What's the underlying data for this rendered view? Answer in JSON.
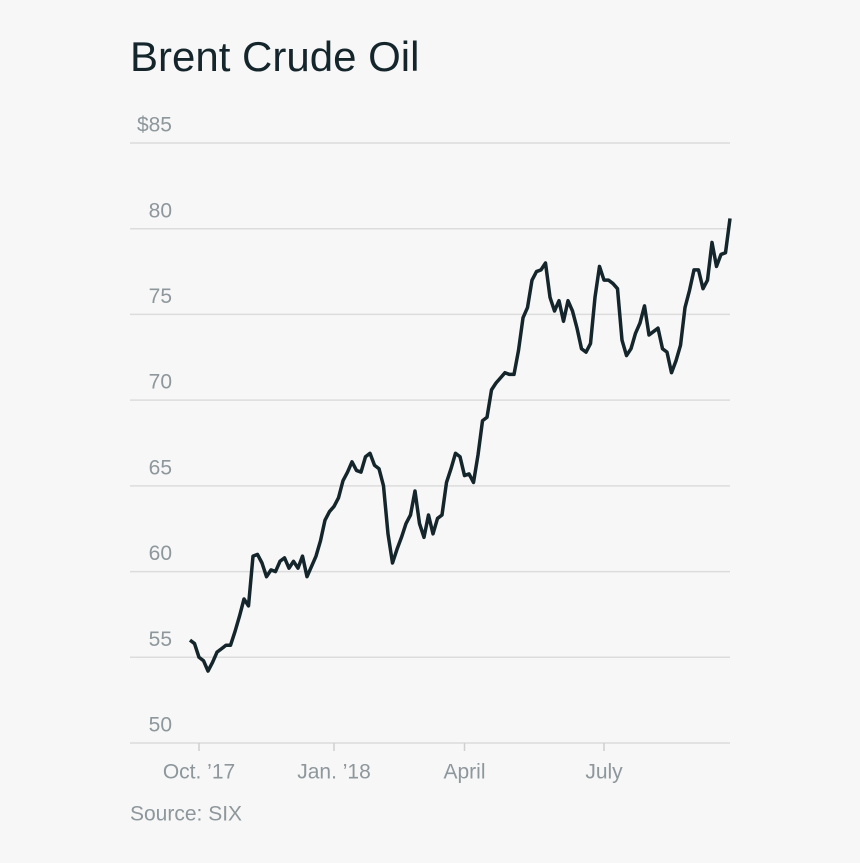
{
  "chart_data": {
    "type": "line",
    "title": "Brent Crude Oil",
    "source": "Source: SIX",
    "categories": [
      null,
      null,
      "Oct. ’17",
      null,
      null,
      null,
      null,
      null,
      null,
      null,
      null,
      null,
      null,
      null,
      null,
      null,
      null,
      null,
      null,
      null,
      null,
      null,
      null,
      null,
      null,
      null,
      null,
      null,
      null,
      null,
      null,
      null,
      "Jan. ’18",
      null,
      null,
      null,
      null,
      null,
      null,
      null,
      null,
      null,
      null,
      null,
      null,
      null,
      null,
      null,
      null,
      null,
      null,
      null,
      null,
      null,
      null,
      null,
      null,
      null,
      null,
      null,
      null,
      "April",
      null,
      null,
      null,
      null,
      null,
      null,
      null,
      null,
      null,
      null,
      null,
      null,
      null,
      null,
      null,
      null,
      null,
      null,
      null,
      null,
      null,
      null,
      null,
      null,
      null,
      null,
      null,
      null,
      null,
      null,
      "July",
      null,
      null,
      null,
      null,
      null,
      null,
      null,
      null,
      null,
      null,
      null,
      null,
      null,
      null,
      null,
      null,
      null,
      null,
      null,
      null,
      null,
      null,
      null,
      null,
      null,
      null,
      null,
      null
    ],
    "values": [
      56.0,
      55.8,
      55.0,
      54.8,
      54.2,
      54.7,
      55.3,
      55.5,
      55.7,
      55.7,
      56.5,
      57.4,
      58.4,
      58.0,
      60.9,
      61.0,
      60.5,
      59.7,
      60.1,
      60.0,
      60.6,
      60.8,
      60.2,
      60.6,
      60.2,
      60.9,
      59.7,
      60.3,
      60.9,
      61.8,
      63.0,
      63.5,
      63.8,
      64.3,
      65.3,
      65.8,
      66.4,
      65.9,
      65.8,
      66.7,
      66.9,
      66.2,
      66.0,
      65.0,
      62.2,
      60.5,
      61.3,
      62.0,
      62.8,
      63.3,
      64.7,
      62.8,
      62.0,
      63.3,
      62.2,
      63.1,
      63.3,
      65.2,
      66.0,
      66.9,
      66.7,
      65.6,
      65.7,
      65.2,
      66.8,
      68.8,
      69.0,
      70.6,
      71.0,
      71.3,
      71.6,
      71.5,
      71.5,
      72.9,
      74.8,
      75.4,
      77.0,
      77.5,
      77.6,
      78.0,
      76.0,
      75.2,
      75.8,
      74.6,
      75.8,
      75.2,
      74.2,
      73.0,
      72.8,
      73.3,
      76.0,
      77.8,
      77.0,
      77.0,
      76.8,
      76.5,
      73.5,
      72.6,
      73.0,
      73.9,
      74.5,
      75.5,
      73.8,
      74.0,
      74.2,
      73.0,
      72.8,
      71.6,
      72.3,
      73.2,
      75.4,
      76.4,
      77.6,
      77.6,
      76.5,
      77.0,
      79.2,
      77.8,
      78.5,
      78.6,
      80.6
    ],
    "color": "#14262b",
    "ylim": [
      50,
      85
    ],
    "yticks": [
      50,
      55,
      60,
      65,
      70,
      75,
      80,
      {
        "value": 85,
        "label": "$85"
      }
    ],
    "grid": true
  }
}
